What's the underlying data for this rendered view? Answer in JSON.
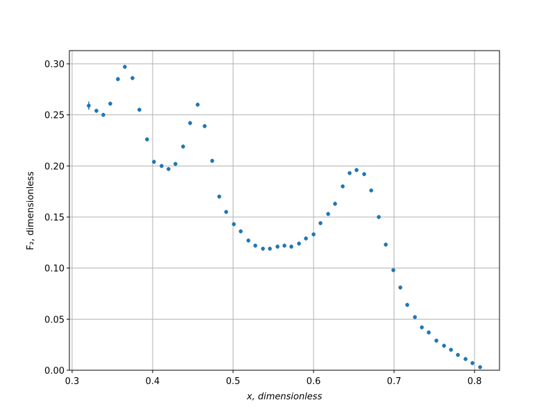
{
  "chart_data": {
    "type": "scatter",
    "xlabel": "x, dimensionless",
    "ylabel": "F₂, dimensionless",
    "x": [
      0.3207,
      0.3302,
      0.3388,
      0.3474,
      0.3569,
      0.3655,
      0.375,
      0.3836,
      0.3931,
      0.4017,
      0.4112,
      0.4198,
      0.4284,
      0.4379,
      0.4466,
      0.456,
      0.4647,
      0.4741,
      0.4828,
      0.4914,
      0.5009,
      0.5095,
      0.519,
      0.5276,
      0.5371,
      0.5457,
      0.5552,
      0.5638,
      0.5724,
      0.5819,
      0.5905,
      0.6,
      0.6086,
      0.6181,
      0.6267,
      0.6362,
      0.6448,
      0.6534,
      0.6629,
      0.6716,
      0.681,
      0.6897,
      0.6991,
      0.7078,
      0.7164,
      0.7259,
      0.7345,
      0.7431,
      0.7526,
      0.7621,
      0.7707,
      0.7793,
      0.7888,
      0.7974,
      0.8069
    ],
    "series": [
      {
        "color": "#1f77b4",
        "values": [
          0.259,
          0.254,
          0.25,
          0.261,
          0.285,
          0.297,
          0.286,
          0.255,
          0.226,
          0.204,
          0.2,
          0.197,
          0.202,
          0.219,
          0.242,
          0.26,
          0.239,
          0.205,
          0.17,
          0.155,
          0.143,
          0.136,
          0.127,
          0.122,
          0.119,
          0.119,
          0.121,
          0.122,
          0.121,
          0.124,
          0.129,
          0.133,
          0.144,
          0.153,
          0.163,
          0.18,
          0.193,
          0.196,
          0.192,
          0.176,
          0.15,
          0.123,
          0.098,
          0.081,
          0.064,
          0.052,
          0.042,
          0.037,
          0.029,
          0.024,
          0.02,
          0.015,
          0.011,
          0.007,
          0.003
        ],
        "errors": [
          0.004,
          0.002,
          0.002,
          0.002,
          0.002,
          0.002,
          0.002,
          0.002,
          0.002,
          0.002,
          0.002,
          0.002,
          0.002,
          0.002,
          0.002,
          0.002,
          0.002,
          0.002,
          0.002,
          0.002,
          0.002,
          0.002,
          0.002,
          0.002,
          0.002,
          0.002,
          0.002,
          0.002,
          0.002,
          0.002,
          0.002,
          0.002,
          0.002,
          0.002,
          0.002,
          0.002,
          0.002,
          0.002,
          0.002,
          0.002,
          0.002,
          0.002,
          0.002,
          0.002,
          0.002,
          0.002,
          0.002,
          0.002,
          0.002,
          0.002,
          0.002,
          0.002,
          0.002,
          0.002,
          0.002
        ]
      }
    ],
    "xlim": [
      0.2966,
      0.831
    ],
    "ylim": [
      0,
      0.3129
    ],
    "xticks": [
      0.3,
      0.4,
      0.5,
      0.6,
      0.7,
      0.8
    ],
    "yticks": [
      {
        "value": 0,
        "label": "0.00"
      },
      0.05,
      {
        "value": 0.1,
        "label": "0.10"
      },
      0.15,
      {
        "value": 0.2,
        "label": "0.20"
      },
      0.25,
      {
        "value": 0.3,
        "label": "0.30"
      }
    ],
    "grid": true
  }
}
